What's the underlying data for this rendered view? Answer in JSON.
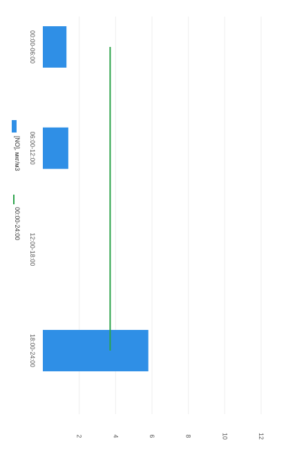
{
  "chart_data": {
    "type": "bar",
    "orientation": "rotated-90-clockwise",
    "categories": [
      "00:00-06:00",
      "06:00-12:00",
      "12:00-18:00",
      "18:00-24:00"
    ],
    "series": [
      {
        "name": "[NO], мкг/м3",
        "type": "bar",
        "values": [
          1.3,
          1.4,
          null,
          5.8
        ],
        "color": "#2f8fe6"
      },
      {
        "name": "00:00-24:00",
        "type": "line",
        "values": [
          3.7,
          3.7,
          3.7,
          3.7
        ],
        "color": "#2ca34a"
      }
    ],
    "value_ticks": [
      "",
      "2",
      "4",
      "6",
      "8",
      "10",
      "12"
    ],
    "ylim": [
      0,
      12
    ],
    "grid": true,
    "legend_position": "left"
  }
}
